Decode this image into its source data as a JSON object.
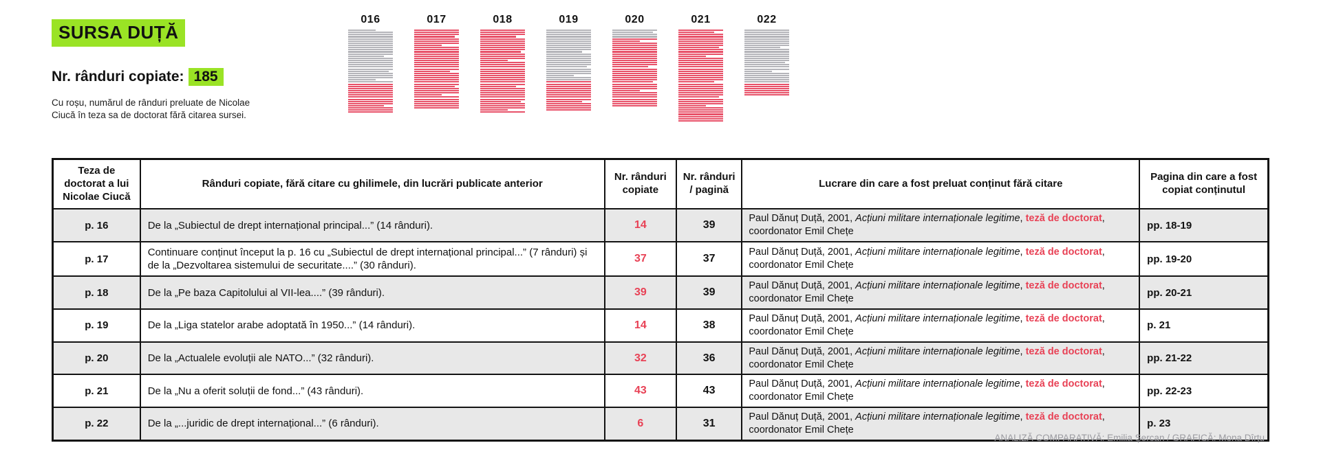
{
  "title": "SURSA DUȚĂ",
  "stats": {
    "label": "Nr. rânduri copiate:",
    "value": "185"
  },
  "caption": "Cu roșu, numărul de rânduri preluate de Nicolae Ciucă în teza sa de doctorat fără citarea sursei.",
  "colors": {
    "green": "#9ae325",
    "red": "#e84155",
    "gray_line": "#b4b4b9",
    "red_line": "#e85068",
    "row_alt": "#e8e8e8"
  },
  "chart_data": {
    "type": "bar",
    "note": "page thumbnails: stacked line counts per thesis page (gray = original lines, red = copied lines)",
    "categories": [
      "016",
      "017",
      "018",
      "019",
      "020",
      "021",
      "022"
    ],
    "series": [
      {
        "name": "copied_lines_red",
        "values": [
          14,
          37,
          39,
          14,
          32,
          43,
          6
        ]
      },
      {
        "name": "total_lines_per_page",
        "values": [
          39,
          37,
          39,
          38,
          36,
          43,
          31
        ]
      }
    ],
    "pages": [
      {
        "label": "016",
        "total_lines": 39,
        "copied_lines": 14,
        "copied_at": "bottom"
      },
      {
        "label": "017",
        "total_lines": 37,
        "copied_lines": 37,
        "copied_at": "all"
      },
      {
        "label": "018",
        "total_lines": 39,
        "copied_lines": 39,
        "copied_at": "all"
      },
      {
        "label": "019",
        "total_lines": 38,
        "copied_lines": 14,
        "copied_at": "bottom"
      },
      {
        "label": "020",
        "total_lines": 36,
        "copied_lines": 32,
        "copied_at": "bottom"
      },
      {
        "label": "021",
        "total_lines": 43,
        "copied_lines": 43,
        "copied_at": "all"
      },
      {
        "label": "022",
        "total_lines": 31,
        "copied_lines": 6,
        "copied_at": "bottom"
      }
    ]
  },
  "table": {
    "headers": [
      "Teza de doctorat a lui Nicolae Ciucă",
      "Rânduri copiate, fără citare cu ghilimele, din lucrări publicate anterior",
      "Nr. rânduri copiate",
      "Nr. rânduri / pagină",
      "Lucrare din care a fost preluat conținut fără citare",
      "Pagina din care a fost copiat conținutul"
    ],
    "source": {
      "prefix": "Paul Dănuț Duță, 2001, ",
      "title_italic": "Acțiuni militare internaționale legitime",
      "mid": ", ",
      "highlight": "teză de doctorat",
      "suffix": ", coordonator Emil Chețe"
    },
    "rows": [
      {
        "thesis_page": "p. 16",
        "description": "De la „Subiectul de drept internațional principal...” (14 rânduri).",
        "copied": "14",
        "lines_per_page": "39",
        "source_pages": "pp. 18-19"
      },
      {
        "thesis_page": "p. 17",
        "description": "Continuare conținut început la p. 16 cu „Subiectul de drept internațional principal...” (7 rânduri) și de la „Dezvoltarea sistemului de securitate....” (30 rânduri).",
        "copied": "37",
        "lines_per_page": "37",
        "source_pages": "pp. 19-20"
      },
      {
        "thesis_page": "p. 18",
        "description": "De la „Pe baza Capitolului al VII-lea....” (39 rânduri).",
        "copied": "39",
        "lines_per_page": "39",
        "source_pages": "pp. 20-21"
      },
      {
        "thesis_page": "p. 19",
        "description": "De la „Liga statelor arabe adoptată în 1950...” (14 rânduri).",
        "copied": "14",
        "lines_per_page": "38",
        "source_pages": "p. 21"
      },
      {
        "thesis_page": "p. 20",
        "description": "De la „Actualele evoluții ale NATO...” (32 rânduri).",
        "copied": "32",
        "lines_per_page": "36",
        "source_pages": "pp. 21-22"
      },
      {
        "thesis_page": "p. 21",
        "description": "De la „Nu a oferit soluții de fond...” (43 rânduri).",
        "copied": "43",
        "lines_per_page": "43",
        "source_pages": "pp. 22-23"
      },
      {
        "thesis_page": "p. 22",
        "description": "De la „...juridic de drept internațional...” (6 rânduri).",
        "copied": "6",
        "lines_per_page": "31",
        "source_pages": "p. 23"
      }
    ]
  },
  "footer": "ANALIZĂ COMPARATIVĂ: Emilia Șercan / GRAFICĂ: Mona Dîrțu"
}
